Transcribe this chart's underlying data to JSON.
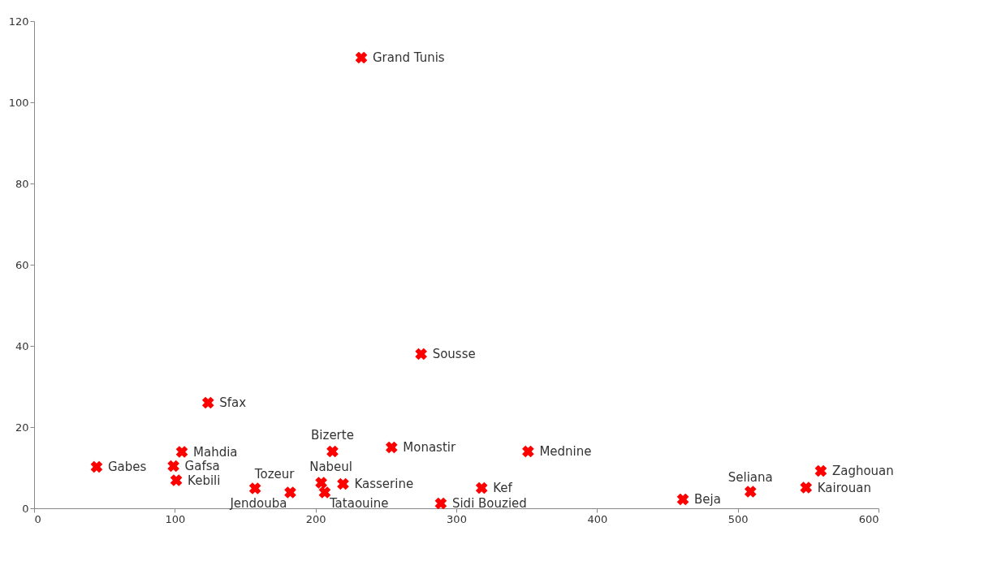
{
  "chart_data": {
    "type": "scatter",
    "x": [
      232.5,
      275,
      123.6,
      105,
      44.4,
      99,
      101,
      212,
      204,
      206.5,
      157,
      182,
      219.5,
      254,
      351,
      318,
      289,
      461,
      509,
      548.5,
      559
    ],
    "values": [
      111,
      38,
      26,
      13.9,
      10.2,
      10.4,
      6.9,
      14,
      6.3,
      3.9,
      4.9,
      3.9,
      6,
      15,
      14,
      5,
      1.2,
      2.2,
      4.1,
      5.1,
      9.2
    ],
    "color": "#ff0000",
    "marker": "cross",
    "xlim": [
      0,
      600
    ],
    "xticks": [
      0,
      100,
      200,
      300,
      400,
      500,
      600
    ],
    "ylim": [
      0,
      120
    ],
    "yticks": [
      0,
      20,
      40,
      60,
      80,
      100,
      120
    ],
    "grid": false,
    "annotations": [
      {
        "text": "Grand Tunis",
        "x": 232.5,
        "y": 111
      },
      {
        "text": "Sousse",
        "x": 275,
        "y": 38
      },
      {
        "text": "Sfax",
        "x": 123.6,
        "y": 26
      },
      {
        "text": "Mahdia",
        "x": 105,
        "y": 13.9
      },
      {
        "text": "Gabes",
        "x": 44.4,
        "y": 10.2
      },
      {
        "text": "Gafsa",
        "x": 99,
        "y": 10.4
      },
      {
        "text": "Kebili",
        "x": 101,
        "y": 6.9
      },
      {
        "text": "Bizerte",
        "x": 212,
        "y": 14
      },
      {
        "text": "Nabeul",
        "x": 204,
        "y": 6.3
      },
      {
        "text": "Tataouine",
        "x": 206.5,
        "y": 3.9
      },
      {
        "text": "Tozeur",
        "x": 157,
        "y": 4.9
      },
      {
        "text": "Jendouba",
        "x": 182,
        "y": 3.9
      },
      {
        "text": "Kasserine",
        "x": 219.5,
        "y": 6
      },
      {
        "text": "Monastir",
        "x": 254,
        "y": 15
      },
      {
        "text": "Mednine",
        "x": 351,
        "y": 14
      },
      {
        "text": "Kef",
        "x": 318,
        "y": 5
      },
      {
        "text": "Sidi Bouzied",
        "x": 289,
        "y": 1.2
      },
      {
        "text": "Beja",
        "x": 461,
        "y": 2.2
      },
      {
        "text": "Seliana",
        "x": 509,
        "y": 4.1
      },
      {
        "text": "Kairouan",
        "x": 548.5,
        "y": 5.1
      },
      {
        "text": "Zaghouan",
        "x": 559,
        "y": 9.2
      }
    ]
  }
}
